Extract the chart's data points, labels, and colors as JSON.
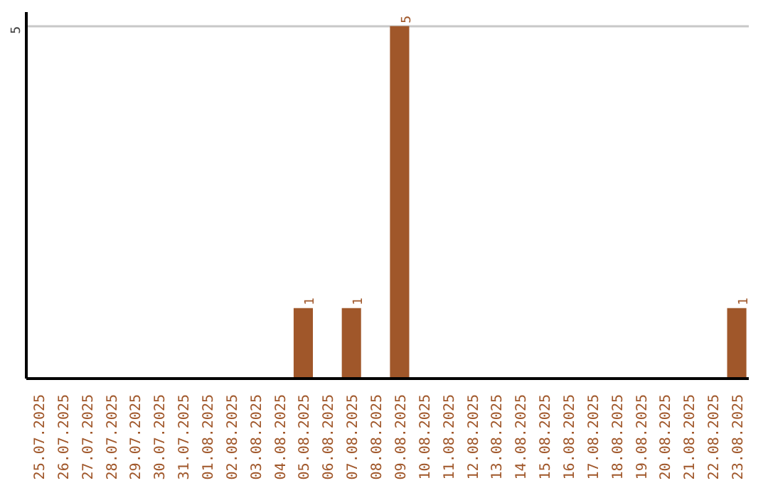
{
  "chart_data": {
    "type": "bar",
    "categories": [
      "25.07.2025",
      "26.07.2025",
      "27.07.2025",
      "28.07.2025",
      "29.07.2025",
      "30.07.2025",
      "31.07.2025",
      "01.08.2025",
      "02.08.2025",
      "03.08.2025",
      "04.08.2025",
      "05.08.2025",
      "06.08.2025",
      "07.08.2025",
      "08.08.2025",
      "09.08.2025",
      "10.08.2025",
      "11.08.2025",
      "12.08.2025",
      "13.08.2025",
      "14.08.2025",
      "15.08.2025",
      "16.08.2025",
      "17.08.2025",
      "18.08.2025",
      "19.08.2025",
      "20.08.2025",
      "21.08.2025",
      "22.08.2025",
      "23.08.2025"
    ],
    "values": [
      0,
      0,
      0,
      0,
      0,
      0,
      0,
      0,
      0,
      0,
      0,
      1,
      0,
      1,
      0,
      5,
      0,
      0,
      0,
      0,
      0,
      0,
      0,
      0,
      0,
      0,
      0,
      0,
      0,
      1
    ],
    "value_labels": [
      null,
      null,
      null,
      null,
      null,
      null,
      null,
      null,
      null,
      null,
      null,
      "1",
      null,
      "1",
      null,
      "5",
      null,
      null,
      null,
      null,
      null,
      null,
      null,
      null,
      null,
      null,
      null,
      null,
      null,
      "1"
    ],
    "color": "#a0572a",
    "ylim": [
      0,
      5.2
    ],
    "yticks": [
      5
    ],
    "grid": "y"
  }
}
